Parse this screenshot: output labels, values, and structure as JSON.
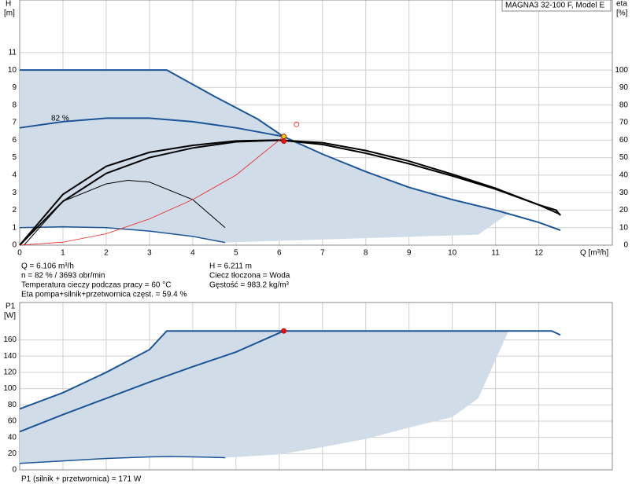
{
  "chart_data": [
    {
      "type": "line",
      "title": "MAGNA3 32-100 F, Model E",
      "ylabel": "H",
      "yunit": "[m]",
      "y2label": "eta",
      "y2unit": "[%]",
      "xlabel": "Q [m³/h]",
      "annotations": [
        "82 %"
      ],
      "notes": [
        "Q = 6.106 m³/h",
        "n = 82 % / 3693 obr/min",
        "Temperatura cieczy podczas pracy = 60 °C",
        "Eta pompa+silnik+przetwornica częst. = 59.4 %",
        "H = 6.211 m",
        "Ciecz tłoczona = Woda",
        "Gęstość = 983.2 kg/m³"
      ],
      "xlim": [
        0,
        13.7
      ],
      "xticks": [
        0,
        1,
        2,
        3,
        4,
        5,
        6,
        7,
        8,
        9,
        10,
        11,
        12
      ],
      "xtick_labels": true,
      "ylim": [
        0,
        14
      ],
      "yticks": [
        0,
        1,
        2,
        3,
        4,
        5,
        6,
        7,
        8,
        9,
        10,
        11
      ],
      "y2lim": [
        0,
        140
      ],
      "y2ticks": [
        0,
        10,
        20,
        30,
        40,
        50,
        60,
        70,
        80,
        90,
        100
      ],
      "grid": true,
      "series": [
        {
          "kind": "area",
          "color": "#d0dce8",
          "x": [
            0,
            3.4,
            4.5,
            5.5,
            6.1,
            7,
            8,
            9,
            10,
            11,
            11.3,
            10.6,
            4.75,
            4,
            3,
            2,
            1,
            0
          ],
          "values": [
            10,
            10,
            8.5,
            7.2,
            6.2,
            5.2,
            4.2,
            3.3,
            2.6,
            2.0,
            1.8,
            0.6,
            0.15,
            0.5,
            0.8,
            1.0,
            1.05,
            1.0
          ]
        },
        {
          "kind": "line",
          "color": "#1c5596",
          "width": 2,
          "x": [
            0,
            3.4,
            4.5,
            5.5,
            6.1,
            7,
            8,
            9,
            10,
            11,
            12,
            12.5
          ],
          "values": [
            10,
            10,
            8.5,
            7.2,
            6.2,
            5.2,
            4.2,
            3.3,
            2.6,
            2.0,
            1.3,
            0.85
          ]
        },
        {
          "kind": "line",
          "color": "#1c5596",
          "width": 2,
          "x": [
            0,
            1,
            2,
            3,
            4,
            5,
            6.1
          ],
          "values": [
            6.7,
            7.05,
            7.25,
            7.25,
            7.05,
            6.7,
            6.2
          ]
        },
        {
          "kind": "line",
          "color": "#1c5596",
          "width": 1.5,
          "x": [
            0,
            1,
            2,
            3,
            4,
            4.75
          ],
          "values": [
            1.0,
            1.05,
            1.0,
            0.8,
            0.5,
            0.15
          ]
        },
        {
          "kind": "line",
          "color": "#000000",
          "width": 2,
          "x": [
            0,
            1,
            2,
            3,
            4,
            5,
            6,
            7,
            8,
            9,
            10,
            11,
            12,
            12.5
          ],
          "values": [
            0,
            2.9,
            4.5,
            5.3,
            5.7,
            5.95,
            6.0,
            5.75,
            5.25,
            4.65,
            3.95,
            3.2,
            2.3,
            1.75
          ]
        },
        {
          "kind": "line",
          "color": "#000000",
          "width": 2,
          "axis": "y2",
          "x": [
            0,
            1,
            2,
            3,
            4,
            5,
            6,
            7,
            8,
            9,
            10,
            11,
            12,
            12.4,
            12.5
          ],
          "values": [
            0,
            25,
            41,
            50,
            55.5,
            59,
            59.9,
            58.5,
            54,
            48,
            40.5,
            32.5,
            23,
            20,
            17
          ]
        },
        {
          "kind": "line",
          "color": "#000000",
          "width": 1,
          "x": [
            0.1,
            1,
            2,
            2.5,
            3,
            4,
            4.75
          ],
          "values": [
            0,
            2.5,
            3.5,
            3.7,
            3.6,
            2.6,
            1.0
          ]
        },
        {
          "kind": "line",
          "color": "#ee2222",
          "width": 0.8,
          "x": [
            0,
            1,
            2,
            3,
            4,
            5,
            6.106
          ],
          "values": [
            0,
            0.17,
            0.65,
            1.5,
            2.6,
            4.0,
            6.211
          ]
        }
      ],
      "points": [
        {
          "x": 6.106,
          "value": 6.211,
          "color": "#f0d000"
        },
        {
          "x": 6.106,
          "value": 59.4,
          "color": "#ee1111",
          "axis": "y2"
        },
        {
          "x": 6.4,
          "value": 6.9,
          "color": "#ee1111",
          "open": true
        }
      ]
    },
    {
      "type": "line",
      "ylabel": "P1",
      "yunit": "[W]",
      "notes": [
        "P1 (silnik + przetwornica) = 171 W"
      ],
      "xlim": [
        0,
        13.7
      ],
      "xticks": [
        0,
        1,
        2,
        3,
        4,
        5,
        6,
        7,
        8,
        9,
        10,
        11,
        12
      ],
      "xtick_labels": false,
      "ylim": [
        0,
        206
      ],
      "yticks": [
        0,
        20,
        40,
        60,
        80,
        100,
        120,
        140,
        160
      ],
      "grid": true,
      "series": [
        {
          "kind": "area",
          "color": "#d0dce8",
          "x": [
            0,
            1,
            2,
            3,
            3.4,
            11.3,
            10.6,
            10,
            9,
            8,
            7,
            6,
            4.75,
            4,
            3.5,
            3,
            2,
            1,
            0
          ],
          "values": [
            75,
            95,
            120,
            148,
            171,
            171,
            88,
            65,
            52,
            38,
            28,
            19,
            15,
            16,
            16.5,
            16,
            14,
            11,
            8
          ]
        },
        {
          "kind": "line",
          "color": "#1c5596",
          "width": 2,
          "x": [
            0,
            1,
            2,
            3,
            3.4,
            12.3,
            12.5
          ],
          "values": [
            75,
            95,
            120,
            148,
            171,
            171,
            166
          ]
        },
        {
          "kind": "line",
          "color": "#1c5596",
          "width": 2,
          "x": [
            0,
            1,
            2,
            3,
            4,
            5,
            6.106
          ],
          "values": [
            47,
            68,
            88,
            108,
            127,
            145,
            171
          ]
        },
        {
          "kind": "line",
          "color": "#1c5596",
          "width": 1.5,
          "x": [
            0,
            1,
            2,
            3,
            3.5,
            4,
            4.75
          ],
          "values": [
            8,
            11,
            14,
            16,
            16.5,
            16,
            15
          ]
        }
      ],
      "points": [
        {
          "x": 6.106,
          "value": 171,
          "color": "#ee1111"
        }
      ]
    }
  ]
}
